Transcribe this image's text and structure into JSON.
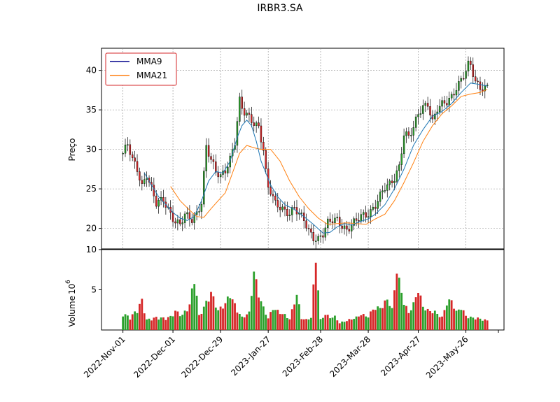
{
  "chart_data": {
    "type": "candlestick",
    "title": "IRBR3.SA",
    "price_panel": {
      "ylabel": "Preço",
      "ylim": [
        17.4,
        42.8
      ],
      "yticks": [
        20,
        25,
        30,
        35,
        40
      ],
      "grid": true,
      "legend": {
        "placement": "top-left",
        "entries": [
          "MMA9",
          "MMA21"
        ]
      }
    },
    "volume_panel": {
      "ylabel": "Volume",
      "exponent_label": "10",
      "exponent_power": "6",
      "ylim": [
        0,
        10
      ],
      "yticks": [
        5,
        10
      ],
      "grid": false
    },
    "x_ticks": [
      "2022-Nov-01",
      "2022-Dec-01",
      "2022-Dec-29",
      "2023-Jan-27",
      "2023-Feb-28",
      "2023-Mar-28",
      "2023-Apr-27",
      "2023-May-26"
    ],
    "x_tick_index": [
      0,
      21,
      41,
      61,
      83,
      103,
      124,
      144
    ],
    "x_range": [
      -9,
      160
    ],
    "colors": {
      "up": "#2ca02c",
      "down": "#d62728",
      "mma9": "#1f77b4",
      "mma21": "#ff7f0e",
      "legend_mma9": "#00008b",
      "legend_frame": "#d62728"
    },
    "price_path": [
      [
        0,
        29.5
      ],
      [
        2,
        30.5
      ],
      [
        4,
        28.5
      ],
      [
        6,
        27.5
      ],
      [
        8,
        25.5
      ],
      [
        10,
        27.0
      ],
      [
        12,
        25.0
      ],
      [
        14,
        23.0
      ],
      [
        17,
        23.5
      ],
      [
        20,
        22.0
      ],
      [
        22,
        21.0
      ],
      [
        24,
        20.5
      ],
      [
        26,
        21.5
      ],
      [
        29,
        21.0
      ],
      [
        31,
        22.0
      ],
      [
        33,
        23.5
      ],
      [
        35,
        30.5
      ],
      [
        37,
        28.5
      ],
      [
        39,
        27.0
      ],
      [
        41,
        26.5
      ],
      [
        43,
        27.5
      ],
      [
        45,
        29.0
      ],
      [
        47,
        31.0
      ],
      [
        49,
        36.0
      ],
      [
        50,
        35.0
      ],
      [
        51,
        34.5
      ],
      [
        53,
        34.0
      ],
      [
        55,
        33.5
      ],
      [
        57,
        33.0
      ],
      [
        59,
        30.0
      ],
      [
        60,
        27.0
      ],
      [
        61,
        25.0
      ],
      [
        62,
        24.5
      ],
      [
        64,
        23.0
      ],
      [
        66,
        22.8
      ],
      [
        68,
        22.4
      ],
      [
        70,
        22.0
      ],
      [
        72,
        22.5
      ],
      [
        74,
        21.6
      ],
      [
        76,
        21.0
      ],
      [
        78,
        19.8
      ],
      [
        80,
        19.0
      ],
      [
        82,
        18.7
      ],
      [
        84,
        19.2
      ],
      [
        86,
        20.5
      ],
      [
        88,
        21.0
      ],
      [
        90,
        21.2
      ],
      [
        92,
        20.5
      ],
      [
        94,
        19.8
      ],
      [
        96,
        20.3
      ],
      [
        98,
        20.8
      ],
      [
        100,
        21.5
      ],
      [
        102,
        21.8
      ],
      [
        104,
        22.3
      ],
      [
        106,
        23.0
      ],
      [
        108,
        24.0
      ],
      [
        110,
        25.0
      ],
      [
        112,
        25.5
      ],
      [
        114,
        26.5
      ],
      [
        116,
        28.0
      ],
      [
        118,
        32.0
      ],
      [
        120,
        31.5
      ],
      [
        122,
        32.5
      ],
      [
        124,
        34.5
      ],
      [
        126,
        35.5
      ],
      [
        128,
        36.0
      ],
      [
        130,
        33.5
      ],
      [
        132,
        35.0
      ],
      [
        134,
        35.5
      ],
      [
        136,
        36.0
      ],
      [
        138,
        36.8
      ],
      [
        140,
        38.0
      ],
      [
        142,
        38.8
      ],
      [
        144,
        39.8
      ],
      [
        145,
        40.5
      ],
      [
        146,
        40.5
      ],
      [
        148,
        38.5
      ],
      [
        150,
        38.0
      ],
      [
        153,
        38.0
      ]
    ],
    "mma9": [
      [
        9,
        27.0
      ],
      [
        12,
        25.5
      ],
      [
        15,
        24.0
      ],
      [
        18,
        23.0
      ],
      [
        21,
        22.0
      ],
      [
        24,
        21.3
      ],
      [
        27,
        21.0
      ],
      [
        30,
        21.5
      ],
      [
        33,
        23.5
      ],
      [
        36,
        26.0
      ],
      [
        39,
        27.2
      ],
      [
        42,
        27.0
      ],
      [
        45,
        28.5
      ],
      [
        48,
        31.5
      ],
      [
        50,
        33.0
      ],
      [
        52,
        33.7
      ],
      [
        54,
        33.0
      ],
      [
        56,
        31.0
      ],
      [
        58,
        28.5
      ],
      [
        60,
        27.0
      ],
      [
        62,
        25.5
      ],
      [
        65,
        24.0
      ],
      [
        68,
        23.0
      ],
      [
        72,
        22.4
      ],
      [
        76,
        21.5
      ],
      [
        80,
        20.5
      ],
      [
        84,
        19.4
      ],
      [
        87,
        19.5
      ],
      [
        90,
        20.2
      ],
      [
        93,
        20.6
      ],
      [
        96,
        20.4
      ],
      [
        99,
        20.8
      ],
      [
        103,
        21.2
      ],
      [
        106,
        21.8
      ],
      [
        110,
        23.0
      ],
      [
        114,
        25.0
      ],
      [
        118,
        27.5
      ],
      [
        122,
        30.5
      ],
      [
        126,
        32.5
      ],
      [
        130,
        34.2
      ],
      [
        134,
        34.8
      ],
      [
        138,
        35.8
      ],
      [
        142,
        37.2
      ],
      [
        146,
        38.4
      ],
      [
        150,
        38.2
      ],
      [
        153,
        38.0
      ]
    ],
    "mma21": [
      [
        20,
        25.3
      ],
      [
        24,
        23.5
      ],
      [
        28,
        22.3
      ],
      [
        31,
        21.5
      ],
      [
        34,
        21.4
      ],
      [
        37,
        22.5
      ],
      [
        40,
        23.5
      ],
      [
        43,
        24.5
      ],
      [
        46,
        27.0
      ],
      [
        49,
        29.5
      ],
      [
        52,
        30.5
      ],
      [
        55,
        30.2
      ],
      [
        58,
        30.0
      ],
      [
        62,
        30.0
      ],
      [
        66,
        28.5
      ],
      [
        70,
        26.0
      ],
      [
        74,
        24.0
      ],
      [
        78,
        22.5
      ],
      [
        82,
        21.3
      ],
      [
        86,
        20.5
      ],
      [
        90,
        20.6
      ],
      [
        94,
        20.7
      ],
      [
        98,
        20.6
      ],
      [
        102,
        20.5
      ],
      [
        106,
        21.2
      ],
      [
        110,
        21.8
      ],
      [
        114,
        23.5
      ],
      [
        118,
        25.8
      ],
      [
        122,
        28.3
      ],
      [
        126,
        31.0
      ],
      [
        130,
        33.0
      ],
      [
        134,
        34.5
      ],
      [
        138,
        35.5
      ],
      [
        142,
        36.7
      ],
      [
        146,
        37.0
      ],
      [
        150,
        37.2
      ],
      [
        153,
        37.6
      ]
    ],
    "volume_path": [
      [
        0,
        2.1
      ],
      [
        3,
        1.6
      ],
      [
        6,
        2.6
      ],
      [
        8,
        3.8
      ],
      [
        10,
        1.3
      ],
      [
        14,
        1.6
      ],
      [
        18,
        1.5
      ],
      [
        20,
        1.7
      ],
      [
        22,
        2.4
      ],
      [
        25,
        1.9
      ],
      [
        28,
        3.2
      ],
      [
        30,
        6.8
      ],
      [
        32,
        1.8
      ],
      [
        35,
        3.5
      ],
      [
        37,
        4.8
      ],
      [
        40,
        2.5
      ],
      [
        43,
        3.4
      ],
      [
        45,
        4.6
      ],
      [
        48,
        2.5
      ],
      [
        50,
        1.6
      ],
      [
        53,
        2.2
      ],
      [
        55,
        7.5
      ],
      [
        57,
        4.6
      ],
      [
        59,
        2.8
      ],
      [
        61,
        1.5
      ],
      [
        63,
        2.8
      ],
      [
        65,
        2.4
      ],
      [
        68,
        1.9
      ],
      [
        70,
        1.4
      ],
      [
        73,
        4.6
      ],
      [
        75,
        1.5
      ],
      [
        77,
        1.3
      ],
      [
        79,
        1.6
      ],
      [
        81,
        9.2
      ],
      [
        83,
        1.3
      ],
      [
        85,
        2.0
      ],
      [
        87,
        1.6
      ],
      [
        89,
        1.7
      ],
      [
        91,
        0.9
      ],
      [
        93,
        1.1
      ],
      [
        96,
        1.4
      ],
      [
        98,
        1.6
      ],
      [
        100,
        2.0
      ],
      [
        103,
        1.7
      ],
      [
        105,
        2.7
      ],
      [
        107,
        2.8
      ],
      [
        109,
        3.0
      ],
      [
        111,
        4.0
      ],
      [
        113,
        2.6
      ],
      [
        115,
        7.8
      ],
      [
        116,
        6.2
      ],
      [
        118,
        3.5
      ],
      [
        120,
        2.2
      ],
      [
        122,
        3.3
      ],
      [
        124,
        5.2
      ],
      [
        126,
        3.0
      ],
      [
        128,
        2.5
      ],
      [
        131,
        2.3
      ],
      [
        134,
        1.6
      ],
      [
        136,
        3.5
      ],
      [
        138,
        3.8
      ],
      [
        140,
        2.3
      ],
      [
        142,
        2.9
      ],
      [
        144,
        1.8
      ],
      [
        146,
        1.6
      ],
      [
        149,
        1.5
      ],
      [
        153,
        1.2
      ]
    ],
    "n_candles": 154
  }
}
